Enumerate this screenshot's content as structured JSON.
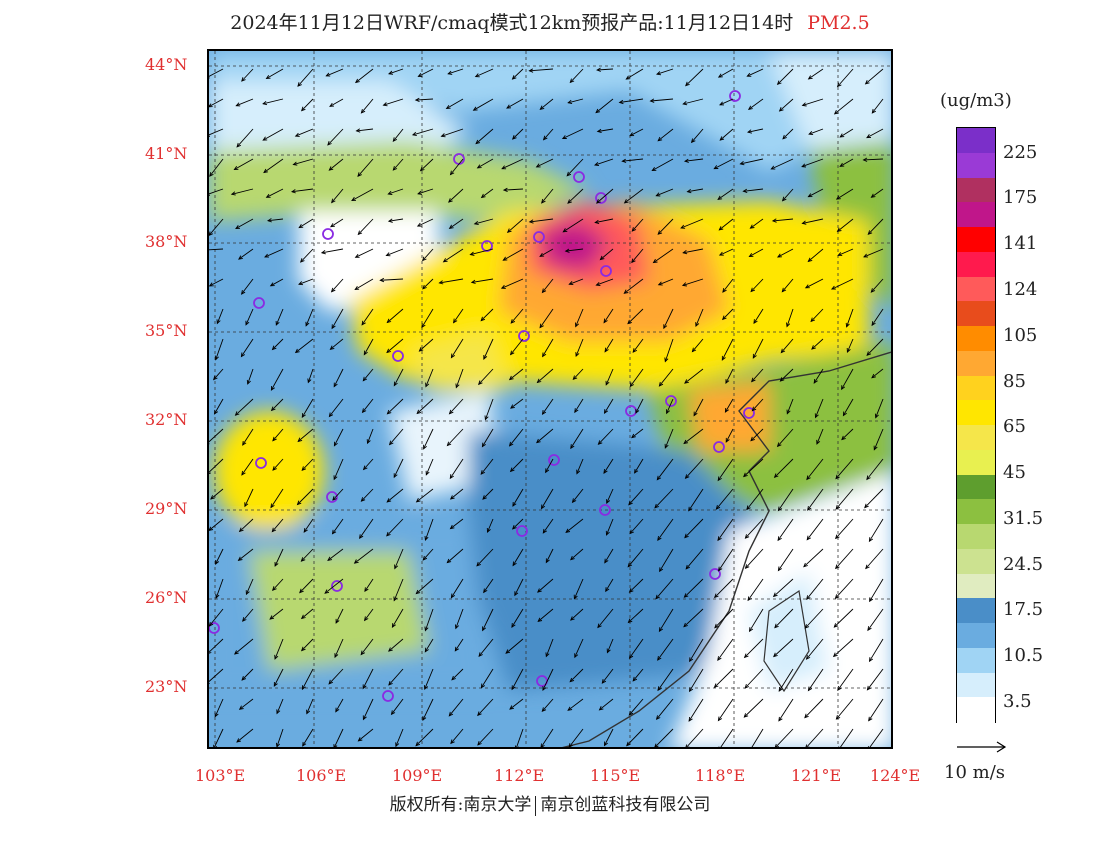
{
  "title": {
    "main": "2024年11月12日WRF/cmaq模式12km预报产品:11月12日14时",
    "pollutant": "PM2.5"
  },
  "axes": {
    "lat_labels": [
      "44°N",
      "41°N",
      "38°N",
      "35°N",
      "32°N",
      "29°N",
      "26°N",
      "23°N"
    ],
    "lon_labels": [
      "103°E",
      "106°E",
      "109°E",
      "112°E",
      "115°E",
      "118°E",
      "121°E",
      "124°E"
    ]
  },
  "legend": {
    "unit": "(ug/m3)",
    "labels": [
      "225",
      "175",
      "141",
      "124",
      "105",
      "85",
      "65",
      "45",
      "31.5",
      "24.5",
      "17.5",
      "10.5",
      "3.5"
    ],
    "colors_top_to_bottom": [
      "#7b2fc9",
      "#9a3ad6",
      "#b03060",
      "#c0168a",
      "#ff0000",
      "#ff1a4d",
      "#ff5a5a",
      "#e84c1c",
      "#ff8c00",
      "#ffa832",
      "#ffd21e",
      "#ffe600",
      "#f5e64a",
      "#e8f050",
      "#5e9e2e",
      "#8cc040",
      "#b8d870",
      "#cce290",
      "#e0ecc0",
      "#4a8ec8",
      "#6aace0",
      "#a0d4f4",
      "#d6eefc",
      "#ffffff"
    ]
  },
  "wind_reference": {
    "label": "10 m/s"
  },
  "copyright": {
    "left": "版权所有:南京大学",
    "right": "南京创蓝科技有限公司"
  },
  "colors": {
    "axis_label": "#e03030",
    "frame": "#000000"
  }
}
